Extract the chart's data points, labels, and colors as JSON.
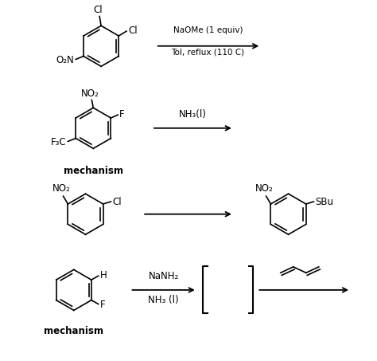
{
  "background_color": "#ffffff",
  "text_color": "#000000",
  "reaction1": {
    "reagent_line1": "NaOMe (1 equiv)",
    "reagent_line2": "Tol, reflux (110 C)"
  },
  "reaction2": {
    "reagent": "NH₃(l)",
    "label": "mechanism"
  },
  "reaction3": {},
  "reaction4": {
    "reagent_line1": "NaNH₂",
    "reagent_line2": "NH₃ (l)",
    "label": "mechanism"
  }
}
